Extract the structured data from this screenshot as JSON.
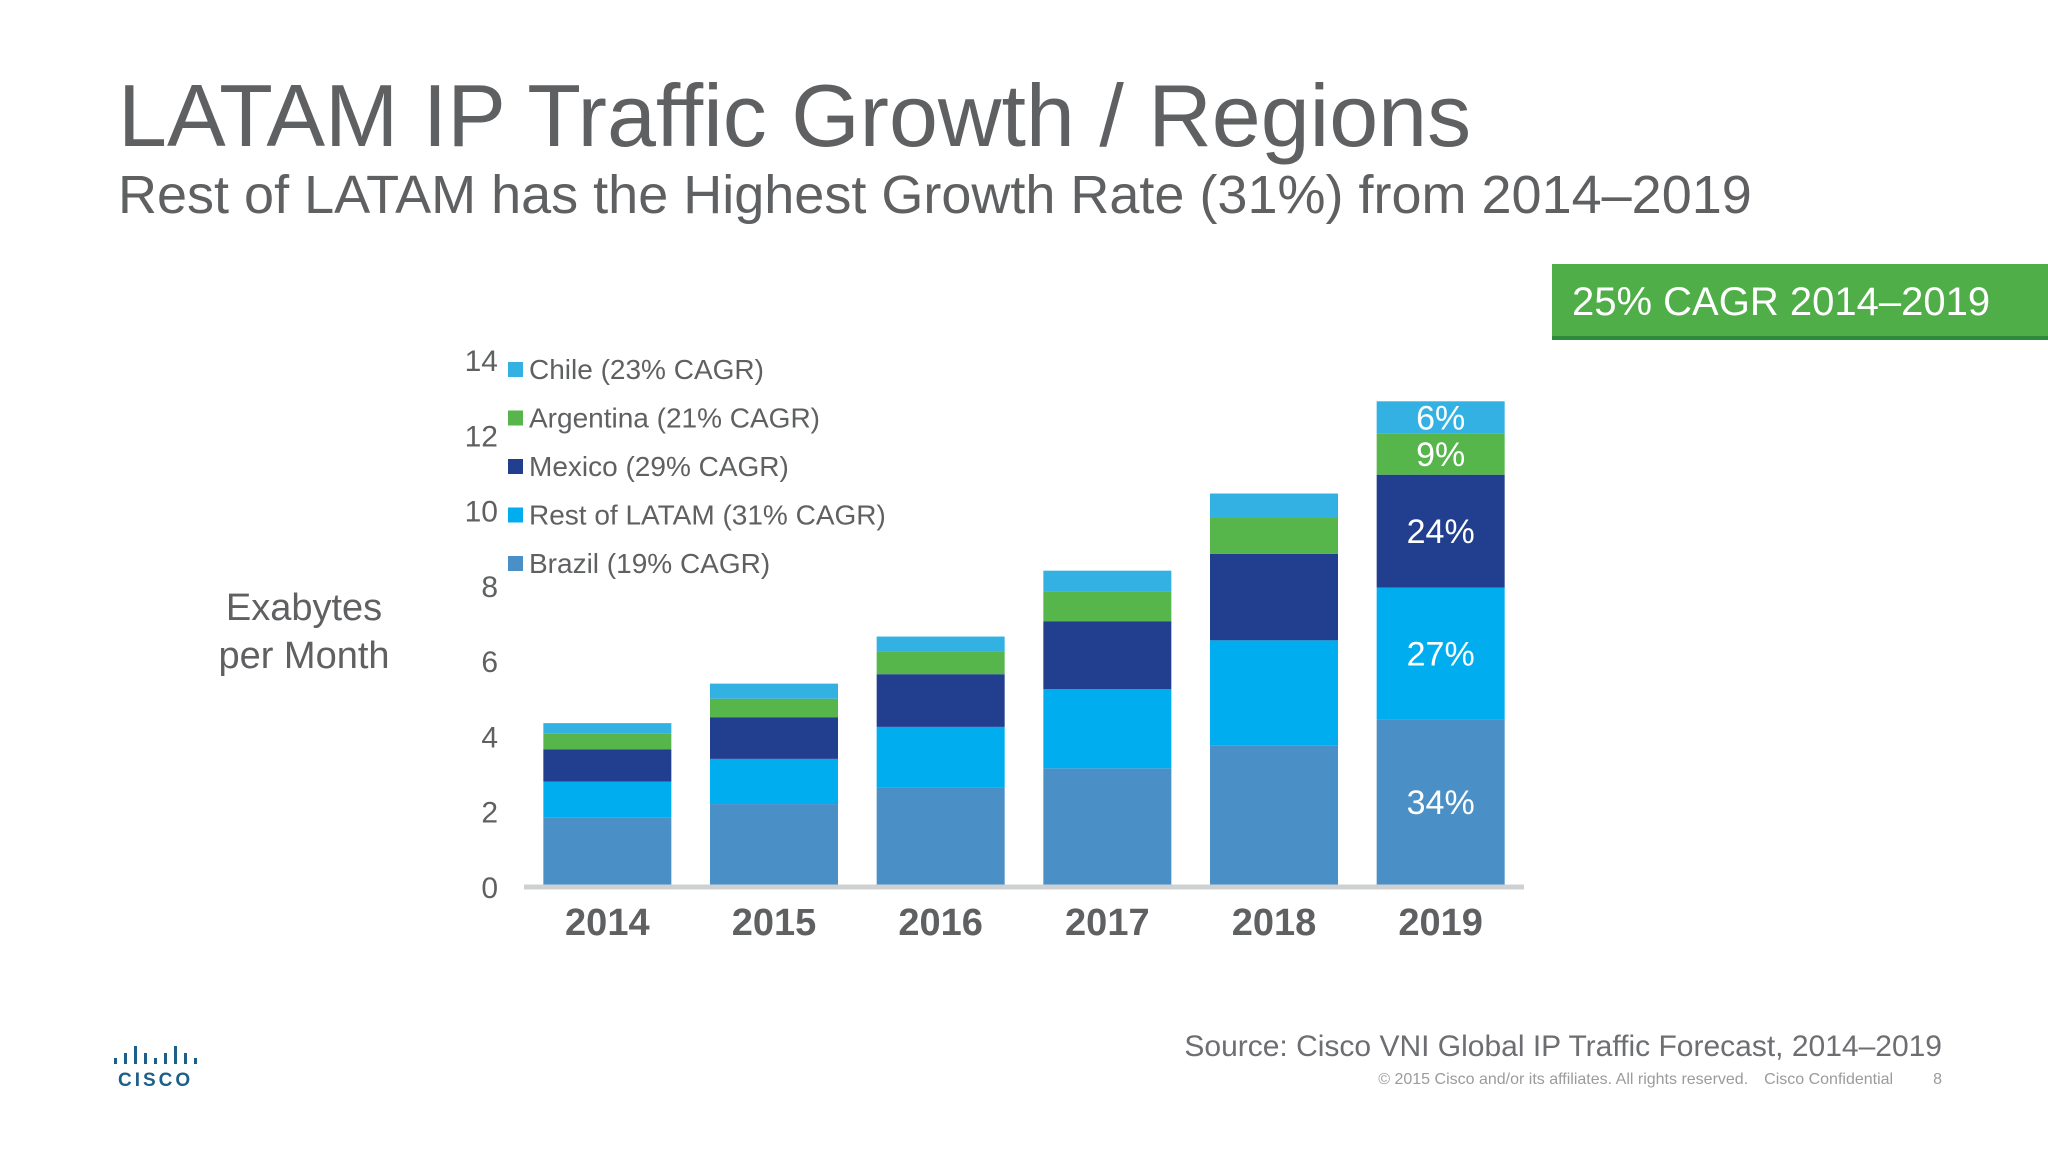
{
  "title": "LATAM IP Traffic Growth / Regions",
  "subtitle": "Rest of LATAM has the Highest Growth Rate (31%) from 2014–2019",
  "cagr_badge": "25% CAGR 2014–2019",
  "ylabel": [
    "Exabytes",
    "per Month"
  ],
  "source": "Source: Cisco VNI Global IP Traffic Forecast, 2014–2019",
  "footer": {
    "copyright": "© 2015  Cisco and/or its affiliates. All rights reserved.",
    "confidential": "Cisco Confidential",
    "page": "8"
  },
  "logo": {
    "text": "CISCO",
    "icon": "cisco-bridge-icon"
  },
  "colors": {
    "title": "#5f6062",
    "badge": "#4fae48",
    "axis": "#cfd0d2"
  },
  "chart_data": {
    "type": "bar",
    "stacked": true,
    "title": "",
    "xlabel": "",
    "ylabel": "Exabytes per Month",
    "ylim": [
      0,
      14
    ],
    "yticks": [
      0,
      2,
      4,
      6,
      8,
      10,
      12,
      14
    ],
    "grid": false,
    "legend_position": "top-left",
    "categories": [
      "2014",
      "2015",
      "2016",
      "2017",
      "2018",
      "2019"
    ],
    "series": [
      {
        "name": "Brazil (19% CAGR)",
        "color": "#4a90c6",
        "values": [
          1.8,
          2.15,
          2.6,
          3.1,
          3.7,
          4.4
        ]
      },
      {
        "name": "Rest of LATAM (31% CAGR)",
        "color": "#00aeef",
        "values": [
          0.95,
          1.2,
          1.6,
          2.1,
          2.8,
          3.5
        ]
      },
      {
        "name": "Mexico (29% CAGR)",
        "color": "#223f8f",
        "values": [
          0.85,
          1.1,
          1.4,
          1.8,
          2.3,
          3.0
        ]
      },
      {
        "name": "Argentina (21% CAGR)",
        "color": "#56b54b",
        "values": [
          0.42,
          0.5,
          0.6,
          0.8,
          0.95,
          1.1
        ]
      },
      {
        "name": "Chile (23% CAGR)",
        "color": "#34b1e3",
        "values": [
          0.28,
          0.4,
          0.4,
          0.55,
          0.65,
          0.85
        ]
      }
    ],
    "legend_order": [
      "Chile (23% CAGR)",
      "Argentina (21% CAGR)",
      "Mexico (29% CAGR)",
      "Rest of LATAM (31% CAGR)",
      "Brazil (19% CAGR)"
    ],
    "annotations": [
      {
        "category": "2019",
        "series": "Brazil (19% CAGR)",
        "text": "34%"
      },
      {
        "category": "2019",
        "series": "Rest of LATAM (31% CAGR)",
        "text": "27%"
      },
      {
        "category": "2019",
        "series": "Mexico (29% CAGR)",
        "text": "24%"
      },
      {
        "category": "2019",
        "series": "Argentina (21% CAGR)",
        "text": "9%"
      },
      {
        "category": "2019",
        "series": "Chile (23% CAGR)",
        "text": "6%"
      }
    ]
  }
}
